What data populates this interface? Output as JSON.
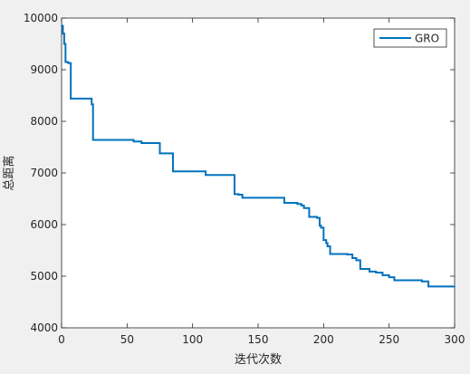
{
  "chart_data": {
    "type": "line",
    "title": "",
    "xlabel": "迭代次数",
    "ylabel": "总距离",
    "xlim": [
      0,
      300
    ],
    "ylim": [
      4000,
      10000
    ],
    "xticks": [
      0,
      50,
      100,
      150,
      200,
      250,
      300
    ],
    "yticks": [
      4000,
      5000,
      6000,
      7000,
      8000,
      9000,
      10000
    ],
    "grid": false,
    "legend_position": "top-right",
    "series": [
      {
        "name": "GRO",
        "color": "#0072bd",
        "step": true,
        "x": [
          0,
          1,
          2,
          3,
          5,
          7,
          22,
          23,
          24,
          55,
          61,
          75,
          85,
          110,
          132,
          135,
          138,
          170,
          180,
          183,
          185,
          189,
          195,
          197,
          198,
          200,
          202,
          203,
          205,
          218,
          222,
          225,
          228,
          235,
          240,
          245,
          250,
          254,
          257,
          275,
          280,
          300
        ],
        "y": [
          9850,
          9700,
          9500,
          9150,
          9130,
          8440,
          8440,
          8330,
          7640,
          7610,
          7580,
          7380,
          7030,
          6960,
          6590,
          6580,
          6520,
          6420,
          6400,
          6370,
          6320,
          6150,
          6130,
          5980,
          5940,
          5700,
          5640,
          5580,
          5430,
          5420,
          5350,
          5310,
          5140,
          5090,
          5070,
          5020,
          4980,
          4920,
          4920,
          4900,
          4800,
          4800
        ]
      }
    ]
  }
}
